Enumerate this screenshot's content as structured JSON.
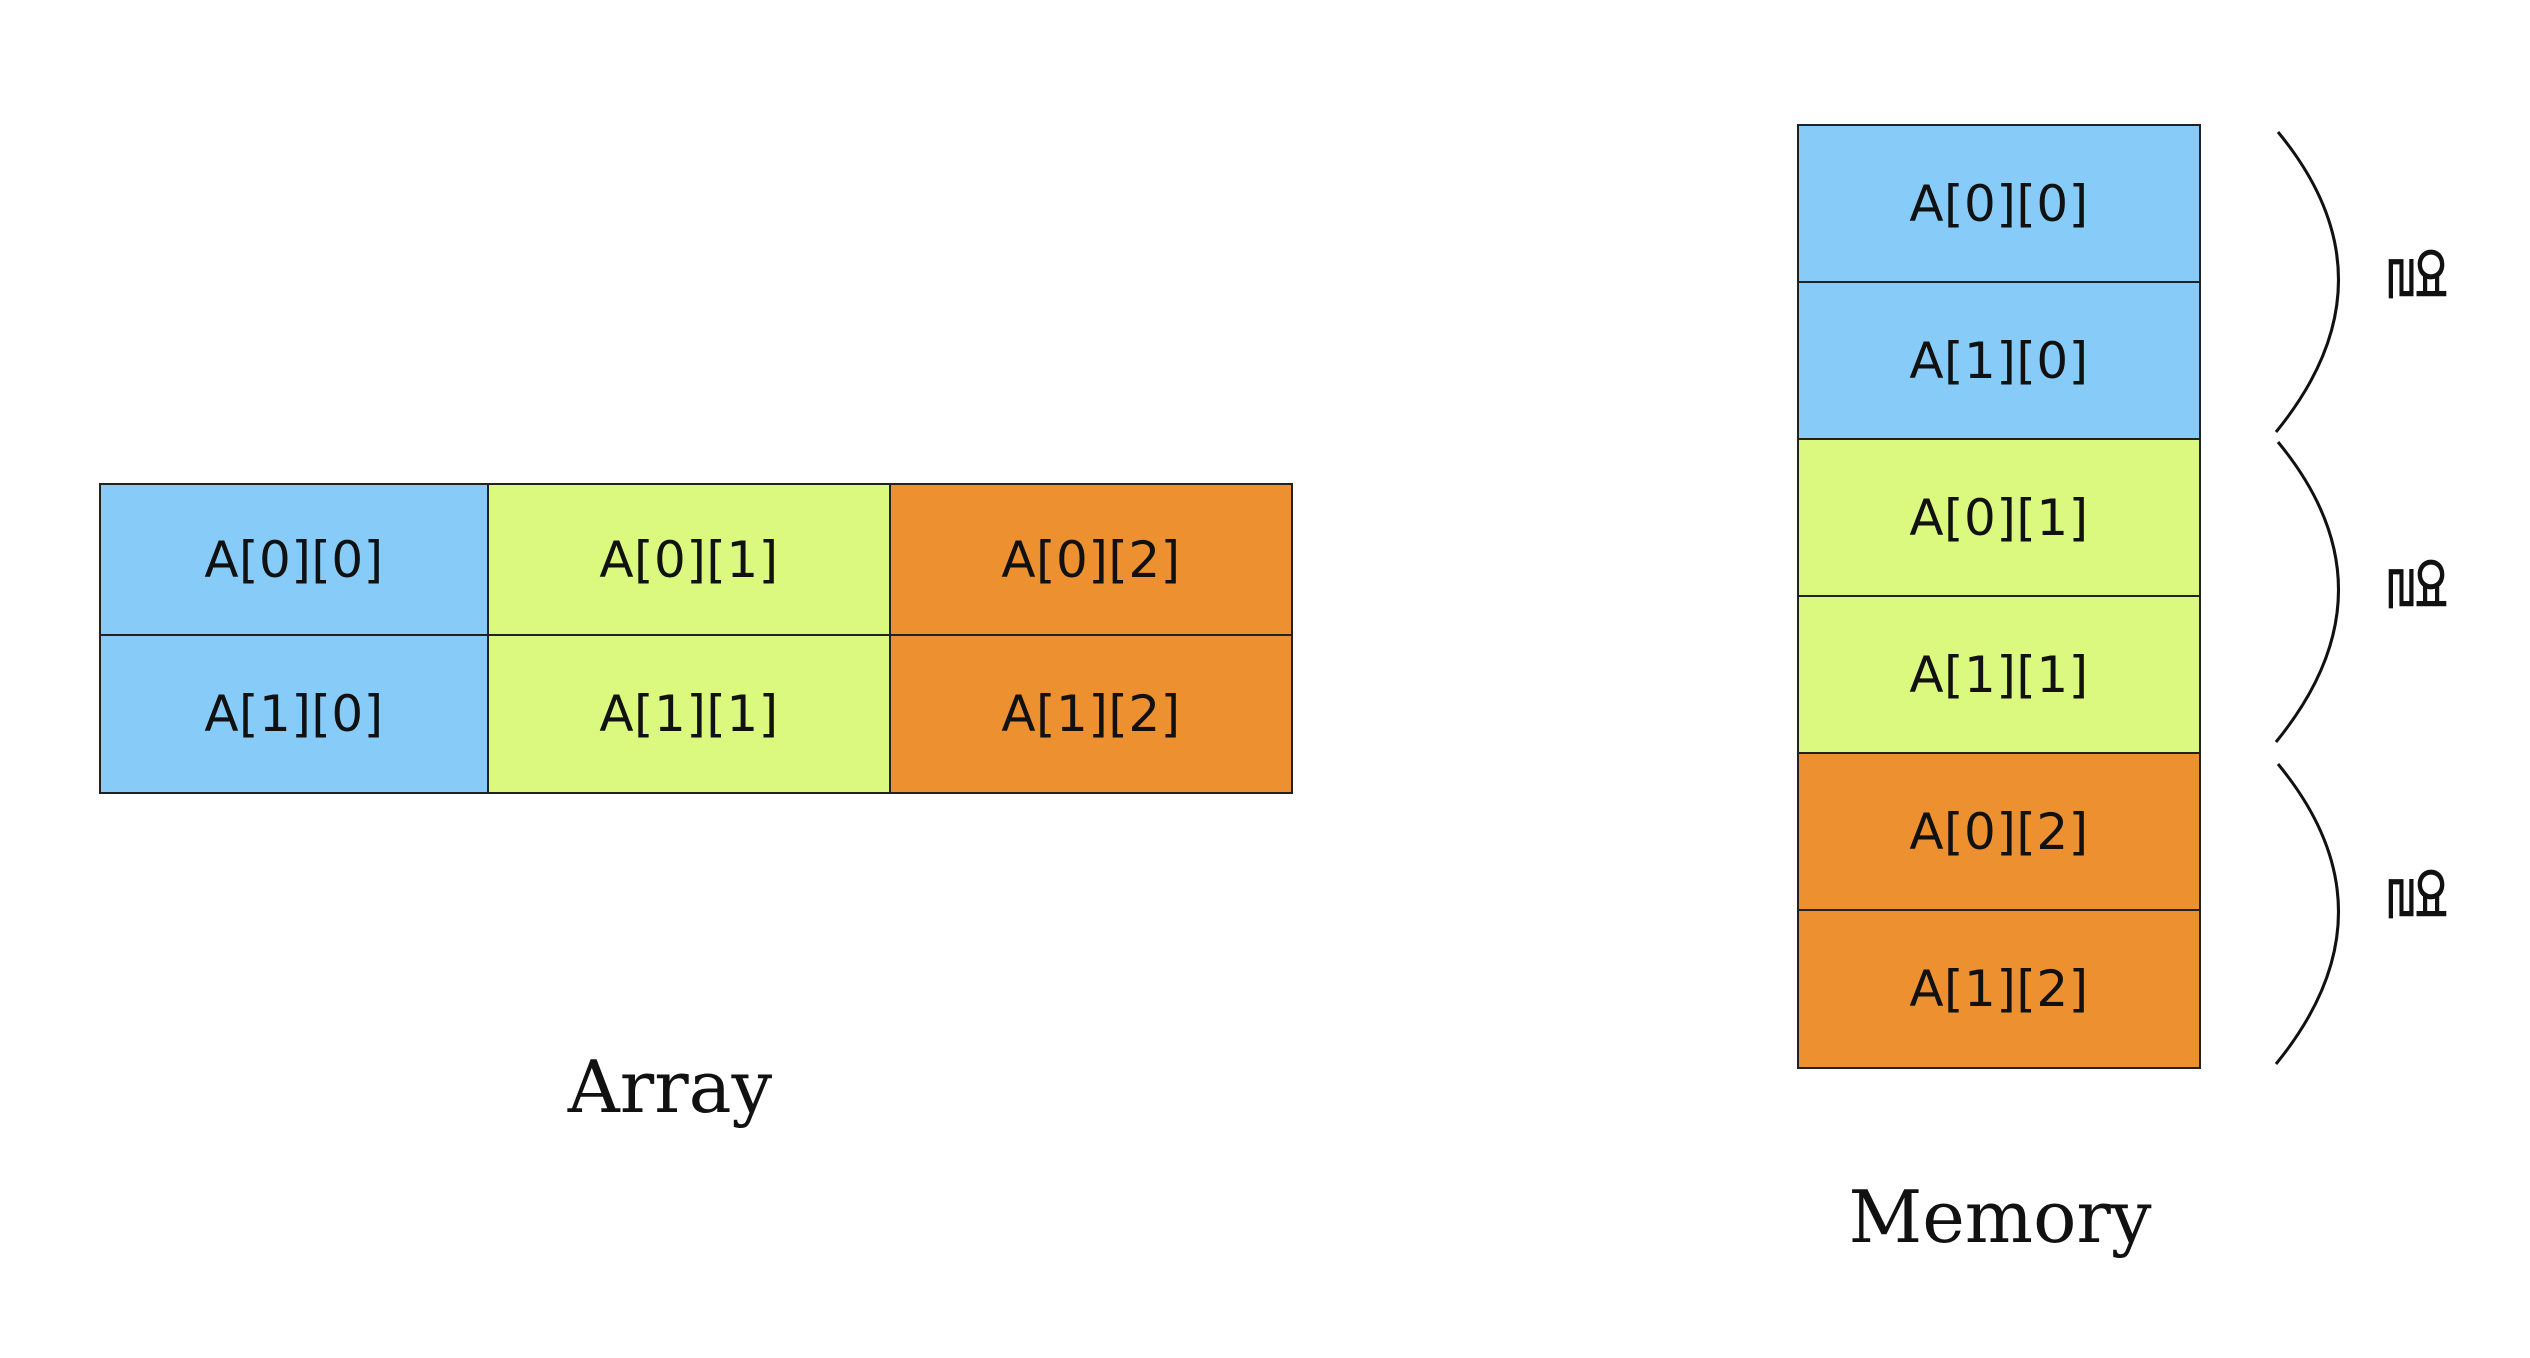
{
  "colors": {
    "col0": "#87CBF9",
    "col1": "#DAF97E",
    "col2": "#EC9030",
    "border": "#222222",
    "text": "#111111"
  },
  "array": {
    "caption": "Array",
    "cells": [
      [
        "A[0][0]",
        "A[0][1]",
        "A[0][2]"
      ],
      [
        "A[1][0]",
        "A[1][1]",
        "A[1][2]"
      ]
    ]
  },
  "memory": {
    "caption": "Memory",
    "cells": [
      "A[0][0]",
      "A[1][0]",
      "A[0][1]",
      "A[1][1]",
      "A[0][2]",
      "A[1][2]"
    ],
    "group_labels": [
      "열",
      "열",
      "열"
    ]
  }
}
